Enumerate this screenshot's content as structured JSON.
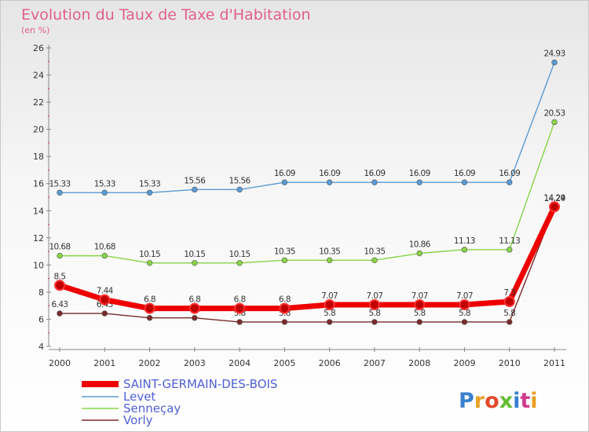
{
  "chart_data": {
    "type": "line",
    "title": "Evolution du Taux de Taxe d'Habitation",
    "subtitle": "(en %)",
    "x": [
      "2000",
      "2001",
      "2002",
      "2003",
      "2004",
      "2005",
      "2006",
      "2007",
      "2008",
      "2009",
      "2010",
      "2011"
    ],
    "ylim": [
      4,
      26
    ],
    "yticks": [
      4,
      6,
      8,
      10,
      12,
      14,
      16,
      18,
      20,
      22,
      24,
      26
    ],
    "grid": false,
    "legend_position": "bottom-left",
    "series": [
      {
        "name": "SAINT-GERMAIN-DES-BOIS",
        "color": "#ee0000",
        "values": [
          8.5,
          7.44,
          6.8,
          6.8,
          6.8,
          6.8,
          7.07,
          7.07,
          7.07,
          7.07,
          7.3,
          14.29
        ],
        "labels": [
          "8.5",
          "7.44",
          "6.8",
          "6.8",
          "6.8",
          "6.8",
          "7.07",
          "7.07",
          "7.07",
          "7.07",
          "7.3",
          "14.29"
        ]
      },
      {
        "name": "Levet",
        "color": "#5a9bd4",
        "values": [
          15.33,
          15.33,
          15.33,
          15.56,
          15.56,
          16.09,
          16.09,
          16.09,
          16.09,
          16.09,
          16.09,
          24.93
        ],
        "labels": [
          "15.33",
          "15.33",
          "15.33",
          "15.56",
          "15.56",
          "16.09",
          "16.09",
          "16.09",
          "16.09",
          "16.09",
          "16.09",
          "24.93"
        ]
      },
      {
        "name": "Senneçay",
        "color": "#88d446",
        "values": [
          10.68,
          10.68,
          10.15,
          10.15,
          10.15,
          10.35,
          10.35,
          10.35,
          10.86,
          11.13,
          11.13,
          20.53
        ],
        "labels": [
          "10.68",
          "10.68",
          "10.15",
          "10.15",
          "10.15",
          "10.35",
          "10.35",
          "10.35",
          "10.86",
          "11.13",
          "11.13",
          "20.53"
        ]
      },
      {
        "name": "Vorly",
        "color": "#7a2a2a",
        "values": [
          6.43,
          6.43,
          6.1,
          6.1,
          5.8,
          5.8,
          5.8,
          5.8,
          5.8,
          5.8,
          5.8,
          14.24
        ],
        "labels": [
          "6.43",
          "6.43",
          "6.1",
          "6.1",
          "5.8",
          "5.8",
          "5.8",
          "5.8",
          "5.8",
          "5.8",
          "5.8",
          "14.24"
        ]
      }
    ]
  },
  "logo": {
    "text": "Proxiti",
    "colors": [
      "#3a7fd0",
      "#e8a020",
      "#e04a2a",
      "#66bb33",
      "#3a7fd0",
      "#d03a8a",
      "#e8a020"
    ]
  }
}
